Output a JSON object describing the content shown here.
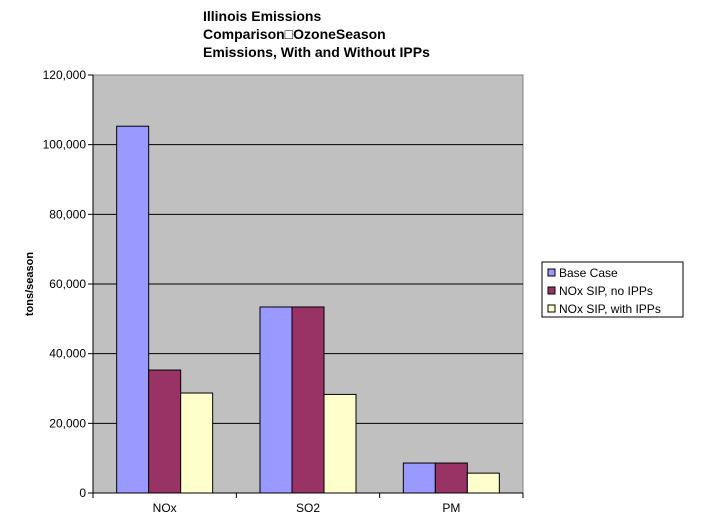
{
  "chart_data": {
    "type": "bar",
    "title_lines": [
      "Illinois Emissions",
      "Comparison□OzoneSeason",
      "Emissions, With and Without IPPs"
    ],
    "xlabel": "",
    "ylabel": "tons/season",
    "categories": [
      "NOx",
      "SO2",
      "PM"
    ],
    "series": [
      {
        "name": "Base Case",
        "values": [
          105300,
          53400,
          8600
        ],
        "color": "#9999ff"
      },
      {
        "name": "NOx SIP, no IPPs",
        "values": [
          35300,
          53400,
          8600
        ],
        "color": "#993366"
      },
      {
        "name": "NOx SIP, with IPPs",
        "values": [
          28700,
          28300,
          5700
        ],
        "color": "#ffffcc"
      }
    ],
    "ylim": [
      0,
      120000
    ],
    "yticks": [
      0,
      20000,
      40000,
      60000,
      80000,
      100000,
      120000
    ],
    "ytick_labels": [
      "0",
      "20,000",
      "40,000",
      "60,000",
      "80,000",
      "100,000",
      "120,000"
    ],
    "grid": true,
    "legend_position": "right",
    "plot_background": "#c0c0c0"
  }
}
